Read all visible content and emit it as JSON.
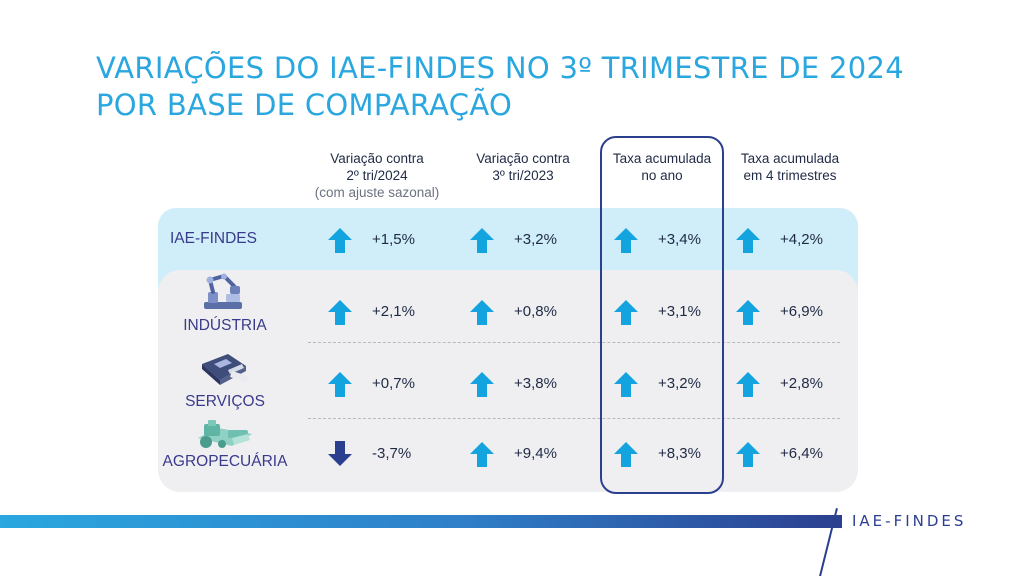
{
  "title": {
    "line1": "VARIAÇÕES DO IAE-FINDES NO 3º TRIMESTRE DE 2024",
    "line2": "POR BASE DE COMPARAÇÃO"
  },
  "columns": [
    {
      "line1": "Variação contra",
      "line2": "2º tri/2024",
      "sub": "(com ajuste sazonal)"
    },
    {
      "line1": "Variação contra",
      "line2": "3º tri/2023",
      "sub": ""
    },
    {
      "line1": "Taxa acumulada",
      "line2": "no ano",
      "sub": ""
    },
    {
      "line1": "Taxa acumulada",
      "line2": "em 4 trimestres",
      "sub": ""
    }
  ],
  "rows": [
    {
      "label": "IAE-FINDES",
      "icon": "",
      "values": [
        "+1,5%",
        "+3,2%",
        "+3,4%",
        "+4,2%"
      ],
      "directions": [
        "up",
        "up",
        "up",
        "up"
      ]
    },
    {
      "label": "INDÚSTRIA",
      "icon": "robot-arm-icon",
      "values": [
        "+2,1%",
        "+0,8%",
        "+3,1%",
        "+6,9%"
      ],
      "directions": [
        "up",
        "up",
        "up",
        "up"
      ]
    },
    {
      "label": "SERVIÇOS",
      "icon": "card-terminal-icon",
      "values": [
        "+0,7%",
        "+3,8%",
        "+3,2%",
        "+2,8%"
      ],
      "directions": [
        "up",
        "up",
        "up",
        "up"
      ]
    },
    {
      "label": "AGROPECUÁRIA",
      "icon": "tractor-icon",
      "values": [
        "-3,7%",
        "+9,4%",
        "+8,3%",
        "+6,4%"
      ],
      "directions": [
        "down",
        "up",
        "up",
        "up"
      ]
    }
  ],
  "colors": {
    "up": "#13a4df",
    "down": "#2b3f8f",
    "title": "#2aa7df",
    "highlight": "#2b3f8f"
  },
  "footer": {
    "brand": "IAE-FINDES"
  }
}
